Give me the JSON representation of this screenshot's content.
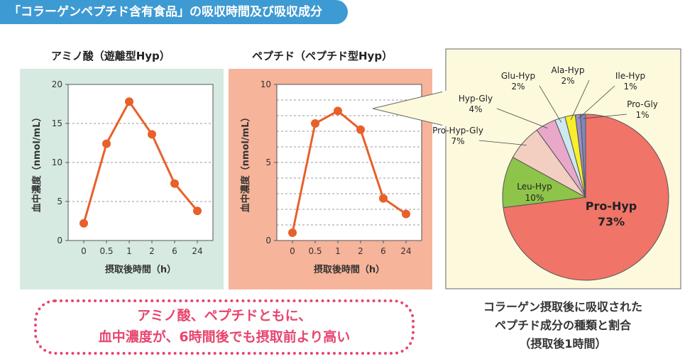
{
  "header": {
    "title": "「コラーゲンペプチド含有食品」の吸収時間及び吸収成分"
  },
  "chart_data": [
    {
      "type": "line",
      "title": "アミノ酸（遊離型Hyp）",
      "xlabel": "摂取後時間（h）",
      "ylabel": "血中濃度（nmol/mL）",
      "categories": [
        "0",
        "0.5",
        "1",
        "2",
        "6",
        "24"
      ],
      "values": [
        2.2,
        12.4,
        17.8,
        13.6,
        7.3,
        3.8
      ],
      "ylim": [
        0,
        20
      ],
      "yticks": [
        "0",
        "5",
        "10",
        "15",
        "20"
      ],
      "grid": true,
      "colors": {
        "line": "#e8602a",
        "background": "#d6eae2"
      }
    },
    {
      "type": "line",
      "title": "ペプチド（ペプチド型Hyp）",
      "xlabel": "摂取後時間（h）",
      "ylabel": "血中濃度（nmol/mL）",
      "categories": [
        "0",
        "0.5",
        "1",
        "2",
        "6",
        "24"
      ],
      "values": [
        0.5,
        7.5,
        8.3,
        7.1,
        2.7,
        1.7
      ],
      "ylim": [
        0,
        10
      ],
      "yticks": [
        "0",
        "5",
        "10"
      ],
      "grid": true,
      "colors": {
        "line": "#e8602a",
        "background": "#f6b49a"
      }
    },
    {
      "type": "pie",
      "title": "",
      "slices": [
        {
          "label": "Pro-Hyp",
          "value": 73,
          "display": "73%",
          "color": "#f07468"
        },
        {
          "label": "Leu-Hyp",
          "value": 10,
          "display": "10%",
          "color": "#8dc449"
        },
        {
          "label": "Pro-Hyp-Gly",
          "value": 7,
          "display": "7%",
          "color": "#f2cfc1"
        },
        {
          "label": "Hyp-Gly",
          "value": 4,
          "display": "4%",
          "color": "#e9a8c9"
        },
        {
          "label": "Glu-Hyp",
          "value": 2,
          "display": "2%",
          "color": "#cde8ee"
        },
        {
          "label": "Ala-Hyp",
          "value": 2,
          "display": "2%",
          "color": "#f8ee2a"
        },
        {
          "label": "Ile-Hyp",
          "value": 1,
          "display": "1%",
          "color": "#9b8ec5"
        },
        {
          "label": "Pro-Gly",
          "value": 1,
          "display": "1%",
          "color": "#7f86bd"
        }
      ],
      "colors": {
        "background": "#fdf9dd"
      }
    }
  ],
  "note": {
    "line1": "アミノ酸、ペプチドともに、",
    "line2": "血中濃度が、6時間後でも摂取前より高い"
  },
  "pie_caption": {
    "line1": "コラーゲン摂取後に吸収された",
    "line2": "ペプチド成分の種類と割合",
    "line3": "（摂取後1時間）"
  }
}
